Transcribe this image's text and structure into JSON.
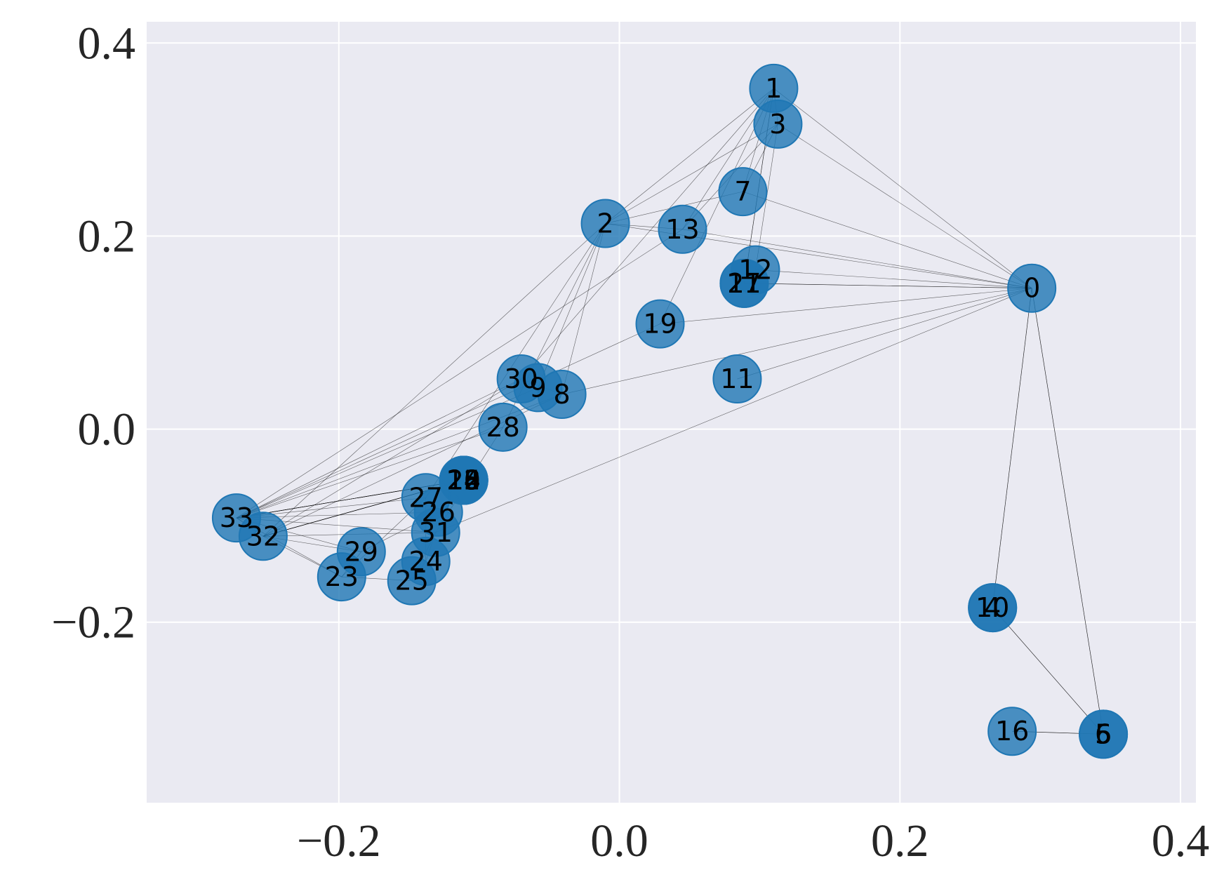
{
  "chart_data": {
    "type": "network",
    "xlim": [
      -0.337,
      0.411
    ],
    "ylim": [
      -0.387,
      0.422
    ],
    "xticks": [
      {
        "value": -0.2,
        "label": "−0.2"
      },
      {
        "value": 0,
        "label": "0.0"
      },
      {
        "value": 0.2,
        "label": "0.2"
      },
      {
        "value": 0.4,
        "label": "0.4"
      }
    ],
    "yticks": [
      {
        "value": -0.2,
        "label": "−0.2"
      },
      {
        "value": 0,
        "label": "0.0"
      },
      {
        "value": 0.2,
        "label": "0.2"
      },
      {
        "value": 0.4,
        "label": "0.4"
      }
    ],
    "grid": true,
    "color": "#1f77b4",
    "nodes": [
      {
        "label": "0",
        "x": 0.294,
        "y": 0.146
      },
      {
        "label": "1",
        "x": 0.11,
        "y": 0.353
      },
      {
        "label": "2",
        "x": -0.01,
        "y": 0.213
      },
      {
        "label": "3",
        "x": 0.113,
        "y": 0.316
      },
      {
        "label": "4",
        "x": 0.266,
        "y": -0.185
      },
      {
        "label": "5",
        "x": 0.345,
        "y": -0.316
      },
      {
        "label": "6",
        "x": 0.345,
        "y": -0.316
      },
      {
        "label": "7",
        "x": 0.088,
        "y": 0.246
      },
      {
        "label": "8",
        "x": -0.041,
        "y": 0.036
      },
      {
        "label": "9",
        "x": -0.058,
        "y": 0.043
      },
      {
        "label": "10",
        "x": 0.266,
        "y": -0.185
      },
      {
        "label": "11",
        "x": 0.084,
        "y": 0.052
      },
      {
        "label": "12",
        "x": 0.097,
        "y": 0.165
      },
      {
        "label": "13",
        "x": 0.045,
        "y": 0.207
      },
      {
        "label": "14",
        "x": -0.111,
        "y": -0.053
      },
      {
        "label": "15",
        "x": -0.111,
        "y": -0.053
      },
      {
        "label": "16",
        "x": 0.28,
        "y": -0.313
      },
      {
        "label": "17",
        "x": 0.089,
        "y": 0.151
      },
      {
        "label": "18",
        "x": -0.111,
        "y": -0.053
      },
      {
        "label": "19",
        "x": 0.029,
        "y": 0.109
      },
      {
        "label": "20",
        "x": -0.111,
        "y": -0.053
      },
      {
        "label": "21",
        "x": 0.089,
        "y": 0.151
      },
      {
        "label": "22",
        "x": -0.111,
        "y": -0.053
      },
      {
        "label": "23",
        "x": -0.198,
        "y": -0.153
      },
      {
        "label": "24",
        "x": -0.138,
        "y": -0.137
      },
      {
        "label": "25",
        "x": -0.148,
        "y": -0.157
      },
      {
        "label": "26",
        "x": -0.129,
        "y": -0.086
      },
      {
        "label": "27",
        "x": -0.138,
        "y": -0.071
      },
      {
        "label": "28",
        "x": -0.083,
        "y": 0.002
      },
      {
        "label": "29",
        "x": -0.184,
        "y": -0.127
      },
      {
        "label": "30",
        "x": -0.07,
        "y": 0.052
      },
      {
        "label": "31",
        "x": -0.131,
        "y": -0.107
      },
      {
        "label": "32",
        "x": -0.254,
        "y": -0.111
      },
      {
        "label": "33",
        "x": -0.273,
        "y": -0.092
      }
    ],
    "edges": [
      [
        0,
        1
      ],
      [
        0,
        2
      ],
      [
        0,
        3
      ],
      [
        0,
        4
      ],
      [
        0,
        5
      ],
      [
        0,
        6
      ],
      [
        0,
        7
      ],
      [
        0,
        8
      ],
      [
        0,
        10
      ],
      [
        0,
        11
      ],
      [
        0,
        12
      ],
      [
        0,
        13
      ],
      [
        0,
        17
      ],
      [
        0,
        19
      ],
      [
        0,
        21
      ],
      [
        0,
        31
      ],
      [
        1,
        2
      ],
      [
        1,
        3
      ],
      [
        1,
        7
      ],
      [
        1,
        13
      ],
      [
        1,
        17
      ],
      [
        1,
        19
      ],
      [
        1,
        21
      ],
      [
        1,
        30
      ],
      [
        2,
        3
      ],
      [
        2,
        7
      ],
      [
        2,
        8
      ],
      [
        2,
        9
      ],
      [
        2,
        13
      ],
      [
        2,
        27
      ],
      [
        2,
        28
      ],
      [
        2,
        32
      ],
      [
        3,
        7
      ],
      [
        3,
        12
      ],
      [
        3,
        13
      ],
      [
        4,
        6
      ],
      [
        4,
        10
      ],
      [
        5,
        6
      ],
      [
        5,
        10
      ],
      [
        5,
        16
      ],
      [
        6,
        16
      ],
      [
        8,
        30
      ],
      [
        8,
        32
      ],
      [
        8,
        33
      ],
      [
        9,
        33
      ],
      [
        13,
        33
      ],
      [
        14,
        32
      ],
      [
        14,
        33
      ],
      [
        15,
        32
      ],
      [
        15,
        33
      ],
      [
        18,
        32
      ],
      [
        18,
        33
      ],
      [
        19,
        33
      ],
      [
        20,
        32
      ],
      [
        20,
        33
      ],
      [
        22,
        32
      ],
      [
        22,
        33
      ],
      [
        23,
        25
      ],
      [
        23,
        27
      ],
      [
        23,
        29
      ],
      [
        23,
        32
      ],
      [
        23,
        33
      ],
      [
        24,
        25
      ],
      [
        24,
        27
      ],
      [
        24,
        31
      ],
      [
        25,
        31
      ],
      [
        26,
        29
      ],
      [
        26,
        33
      ],
      [
        27,
        33
      ],
      [
        28,
        31
      ],
      [
        28,
        33
      ],
      [
        29,
        32
      ],
      [
        29,
        33
      ],
      [
        30,
        32
      ],
      [
        30,
        33
      ],
      [
        31,
        32
      ],
      [
        31,
        33
      ],
      [
        32,
        33
      ]
    ]
  }
}
